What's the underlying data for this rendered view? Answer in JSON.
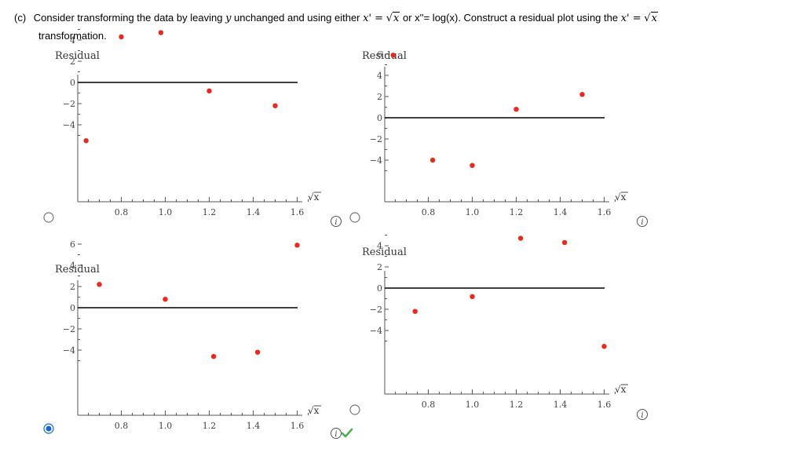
{
  "question": {
    "part": "(c)",
    "text_a": "Consider transforming the data by leaving",
    "var_y": "y",
    "text_b": "unchanged and using either",
    "xprime": "x' =",
    "sqrt_arg": "x",
    "text_c": "or x''= log(x). Construct a residual plot using the",
    "xprime2": "x' =",
    "line2": "transformation."
  },
  "selected_option": 3,
  "colors": {
    "point": "#e8291c",
    "zero_line": "#000000",
    "axis": "#555555",
    "radio_selected": "#1565d8",
    "check": "#4caf50"
  },
  "chart_data": [
    {
      "type": "scatter",
      "title": "",
      "ylabel": "Residual",
      "xlabel": "√x",
      "xlim": [
        0.63,
        1.7
      ],
      "ylim": [
        -5.5,
        5
      ],
      "xticks": [
        0.8,
        1.0,
        1.2,
        1.4,
        1.6
      ],
      "yticks": [
        4,
        2,
        0,
        -2,
        -4
      ],
      "x": [
        0.64,
        0.8,
        0.98,
        1.2,
        1.5
      ],
      "y": [
        -5.5,
        4.3,
        4.7,
        -0.8,
        -2.2
      ]
    },
    {
      "type": "scatter",
      "title": "",
      "ylabel": "Residual",
      "xlabel": "√x",
      "xlim": [
        0.63,
        1.7
      ],
      "ylim": [
        -5.7,
        6.5
      ],
      "xticks": [
        0.8,
        1.0,
        1.2,
        1.4,
        1.6
      ],
      "yticks": [
        6,
        4,
        2,
        0,
        -2,
        -4
      ],
      "x": [
        0.64,
        0.82,
        1.0,
        1.2,
        1.5
      ],
      "y": [
        5.9,
        -4.0,
        -4.5,
        0.8,
        2.2
      ]
    },
    {
      "type": "scatter",
      "title": "",
      "ylabel": "Residual",
      "xlabel": "√x",
      "xlim": [
        0.63,
        1.7
      ],
      "ylim": [
        -5.7,
        6.5
      ],
      "xticks": [
        0.8,
        1.0,
        1.2,
        1.4,
        1.6
      ],
      "yticks": [
        6,
        4,
        2,
        0,
        -2,
        -4
      ],
      "x": [
        0.7,
        1.0,
        1.22,
        1.42,
        1.6
      ],
      "y": [
        2.2,
        0.8,
        -4.6,
        -4.2,
        5.9
      ]
    },
    {
      "type": "scatter",
      "title": "",
      "ylabel": "Residual",
      "xlabel": "√x",
      "xlim": [
        0.63,
        1.7
      ],
      "ylim": [
        -5.6,
        5
      ],
      "xticks": [
        0.8,
        1.0,
        1.2,
        1.4,
        1.6
      ],
      "yticks": [
        4,
        2,
        0,
        -2,
        -4
      ],
      "x": [
        0.74,
        1.0,
        1.22,
        1.42,
        1.6
      ],
      "y": [
        -2.2,
        -0.8,
        4.7,
        4.3,
        -5.5
      ]
    }
  ]
}
